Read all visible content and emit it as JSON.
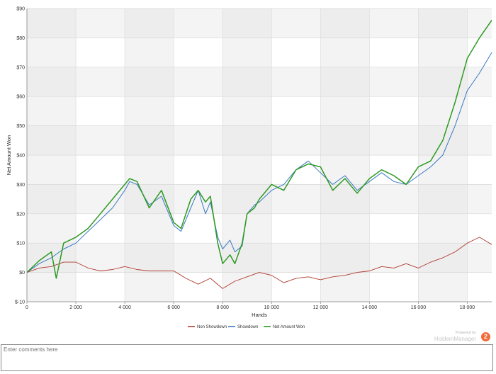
{
  "chart_data": {
    "type": "line",
    "xlabel": "Hands",
    "ylabel": "Net Amount Won",
    "xlim": [
      0,
      19000
    ],
    "ylim": [
      -10,
      90
    ],
    "x_ticks": [
      0,
      2000,
      4000,
      6000,
      8000,
      10000,
      12000,
      14000,
      16000,
      18000
    ],
    "x_tick_labels": [
      "0",
      "2 000",
      "4 000",
      "6 000",
      "8 000",
      "10 000",
      "12 000",
      "14 000",
      "16 000",
      "18 000"
    ],
    "y_ticks": [
      -10,
      0,
      10,
      20,
      30,
      40,
      50,
      60,
      70,
      80,
      90
    ],
    "y_tick_labels": [
      "$-10",
      "$0",
      "$10",
      "$20",
      "$30",
      "$40",
      "$50",
      "$60",
      "$70",
      "$80",
      "$90"
    ],
    "grid": true,
    "legend_position": "bottom-center",
    "series": [
      {
        "name": "Non Showdown",
        "color": "#b03a2e",
        "x": [
          0,
          500,
          1000,
          1500,
          2000,
          2500,
          3000,
          3500,
          4000,
          4500,
          5000,
          5500,
          6000,
          6500,
          7000,
          7500,
          8000,
          8500,
          9000,
          9500,
          10000,
          10500,
          11000,
          11500,
          12000,
          12500,
          13000,
          13500,
          14000,
          14500,
          15000,
          15500,
          16000,
          16500,
          17000,
          17500,
          18000,
          18500,
          19000
        ],
        "y": [
          0,
          1.5,
          2,
          3.5,
          3.5,
          1.5,
          0.5,
          1,
          2,
          1,
          0.5,
          0.5,
          0.5,
          -2,
          -4,
          -2,
          -5.5,
          -3,
          -1.5,
          0,
          -1,
          -3.5,
          -2,
          -1.5,
          -2.5,
          -1.5,
          -1,
          0,
          0.5,
          2,
          1.5,
          3,
          1.5,
          3.5,
          5,
          7,
          10,
          12,
          9.5
        ]
      },
      {
        "name": "Showdown",
        "color": "#3a78c2",
        "x": [
          0,
          500,
          1000,
          1500,
          2000,
          2500,
          3000,
          3500,
          4000,
          4200,
          4500,
          5000,
          5500,
          6000,
          6300,
          6700,
          7000,
          7300,
          7500,
          7800,
          8000,
          8300,
          8500,
          8800,
          9000,
          9300,
          9500,
          10000,
          10500,
          11000,
          11500,
          12000,
          12500,
          13000,
          13500,
          14000,
          14500,
          15000,
          15500,
          16000,
          16500,
          17000,
          17500,
          18000,
          18500,
          19000
        ],
        "y": [
          0,
          3,
          5,
          8,
          10,
          14,
          18,
          22,
          28,
          31,
          30,
          23,
          26,
          16,
          14,
          22,
          28,
          20,
          24,
          12,
          8,
          11,
          7,
          9,
          20,
          23,
          24,
          28,
          30,
          35,
          38,
          34,
          30,
          33,
          28,
          31,
          34,
          31,
          30,
          33,
          36,
          40,
          50,
          62,
          68,
          75
        ]
      },
      {
        "name": "Net Amount Won",
        "color": "#2d9a22",
        "x": [
          0,
          500,
          1000,
          1200,
          1500,
          2000,
          2500,
          3000,
          3500,
          4000,
          4200,
          4500,
          5000,
          5500,
          6000,
          6300,
          6700,
          7000,
          7300,
          7500,
          7800,
          8000,
          8300,
          8500,
          8800,
          9000,
          9300,
          9500,
          10000,
          10500,
          11000,
          11500,
          12000,
          12500,
          13000,
          13500,
          14000,
          14500,
          15000,
          15500,
          16000,
          16500,
          17000,
          17500,
          18000,
          18500,
          19000
        ],
        "y": [
          0,
          4,
          7,
          -2,
          10,
          12,
          15,
          20,
          25,
          30,
          32,
          31,
          22,
          28,
          17,
          15,
          25,
          28,
          24,
          26,
          10,
          3,
          6,
          3,
          10,
          20,
          22,
          25,
          30,
          28,
          35,
          37,
          36,
          28,
          32,
          27,
          32,
          35,
          33,
          30,
          36,
          38,
          45,
          58,
          73,
          80,
          86
        ]
      }
    ]
  },
  "branding": {
    "powered_by": "Powered by",
    "product": "HoldemManager",
    "logo_glyph": "2"
  },
  "comments": {
    "placeholder": "Enter comments here"
  }
}
